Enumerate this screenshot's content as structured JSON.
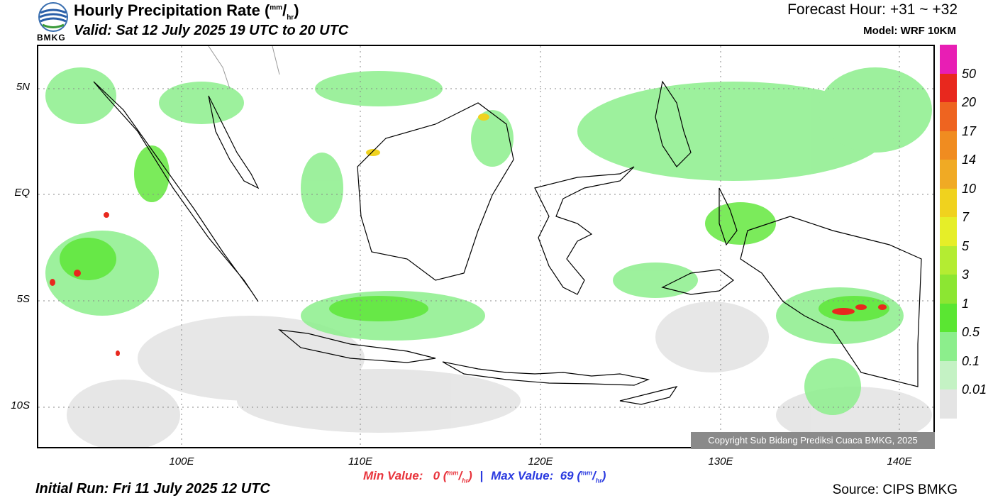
{
  "header": {
    "title_main": "Hourly Precipitation Rate (",
    "title_unit_top": "mm",
    "title_unit_sep": "/",
    "title_unit_bottom": "hr",
    "title_close": ")",
    "valid": "Valid: Sat 12 July 2025 19 UTC to 20 UTC",
    "forecast_hour": "Forecast Hour: +31 ~ +32",
    "model": "Model: WRF 10KM",
    "logo_text": "BMKG"
  },
  "axes": {
    "latitude_labels": [
      "5N",
      "EQ",
      "5S",
      "10S"
    ],
    "longitude_labels": [
      "100E",
      "110E",
      "120E",
      "130E",
      "140E"
    ]
  },
  "footer": {
    "min_label": "Min Value:",
    "min_value": "0",
    "max_label": "Max Value:",
    "max_value": "69",
    "unit_top": "mm",
    "unit_bottom": "hr",
    "separator": "|",
    "initial_run": "Initial Run: Fri 11 July 2025 12 UTC",
    "source": "Source: CIPS BMKG",
    "copyright": "Copyright Sub Bidang Prediksi Cuaca BMKG, 2025"
  },
  "legend": {
    "labels": [
      "50",
      "20",
      "17",
      "14",
      "10",
      "7",
      "5",
      "3",
      "1",
      "0.5",
      "0.1",
      "0.01"
    ],
    "colors": [
      "#e81eb4",
      "#e8281e",
      "#ee6420",
      "#f08c20",
      "#f0aa24",
      "#f0d21e",
      "#e6ee28",
      "#b4ec32",
      "#8ce632",
      "#5ae632",
      "#8cee8c",
      "#c4f2c4",
      "#e4e4e4"
    ]
  }
}
